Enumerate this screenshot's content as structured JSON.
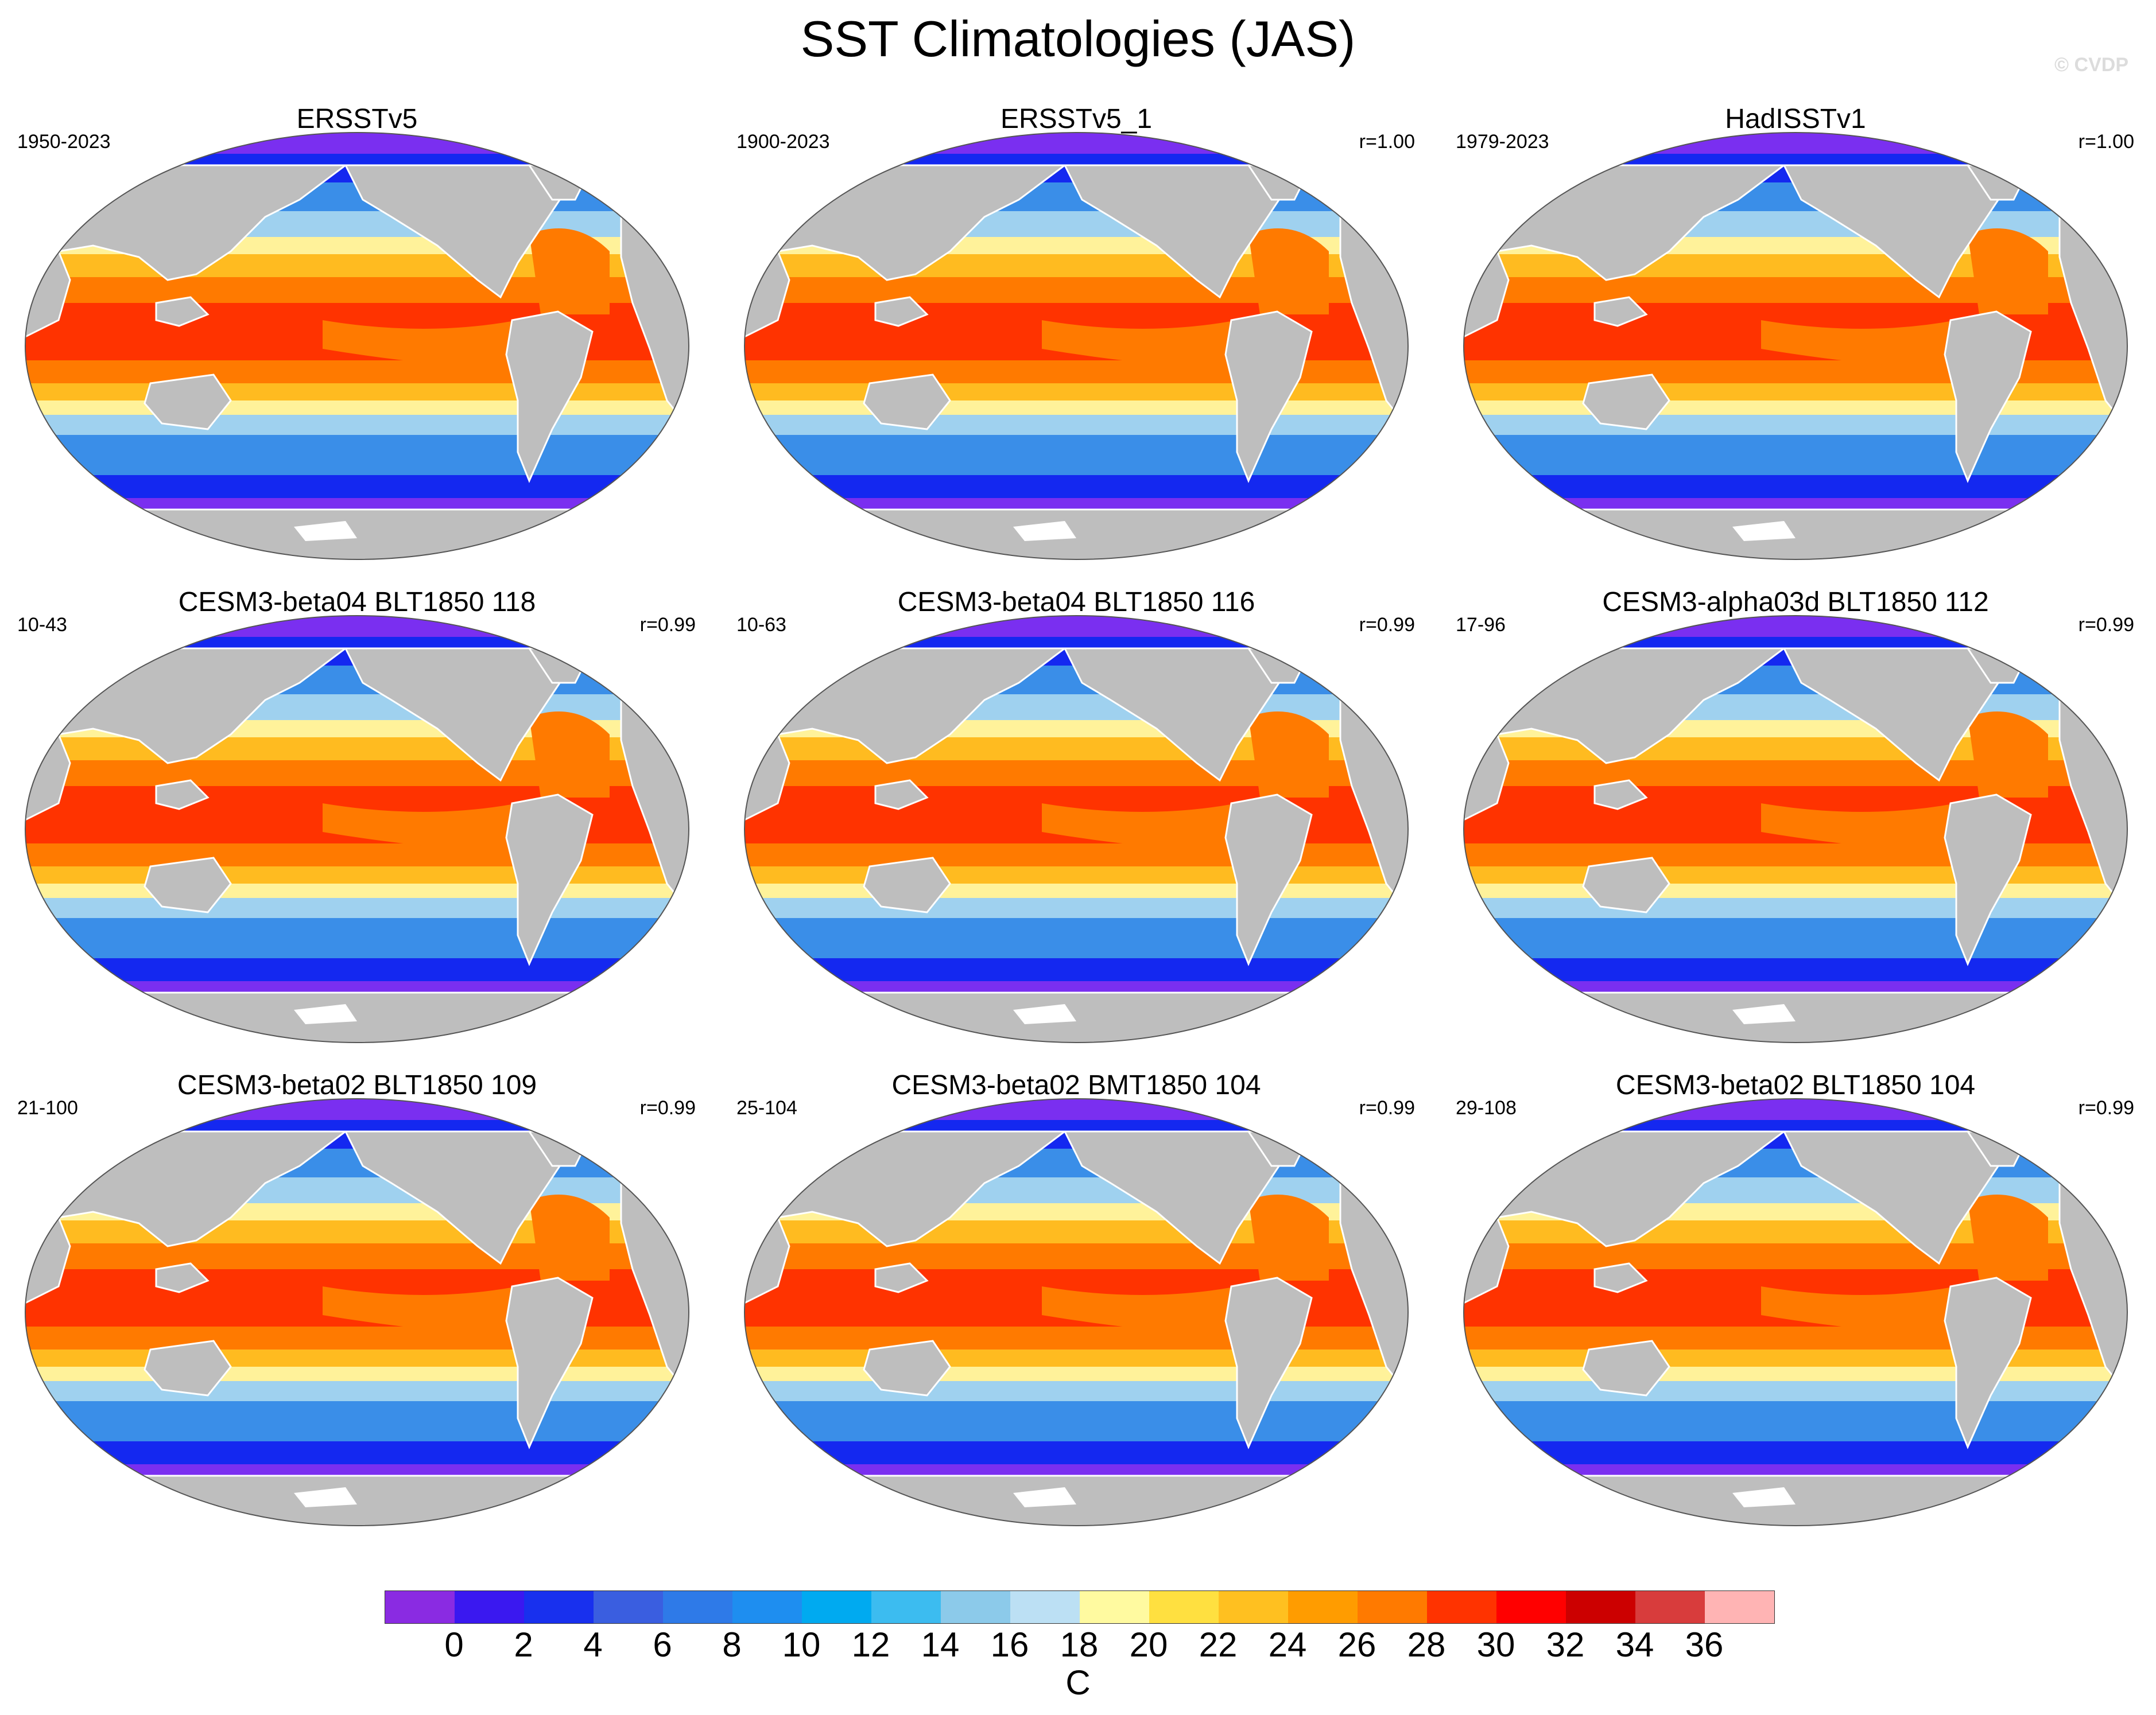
{
  "title": "SST Climatologies (JAS)",
  "watermark": "© CVDP",
  "colors": {
    "land": "#bebebe",
    "ocean_missing": "#ffffff",
    "warm_pool": "#ff3300",
    "tropics": "#ff7a00",
    "subtropics": "#ffbb20",
    "transition": "#fff29a",
    "midlat": "#9fd1ef",
    "subpolar": "#3a8ee8",
    "polar": "#1428f0",
    "ice": "#7a2ff0"
  },
  "panels": [
    {
      "title": "ERSSTv5",
      "period": "1950-2023",
      "corr": ""
    },
    {
      "title": "ERSSTv5_1",
      "period": "1900-2023",
      "corr": "r=1.00"
    },
    {
      "title": "HadISSTv1",
      "period": "1979-2023",
      "corr": "r=1.00"
    },
    {
      "title": "CESM3-beta04 BLT1850 118",
      "period": "10-43",
      "corr": "r=0.99"
    },
    {
      "title": "CESM3-beta04 BLT1850 116",
      "period": "10-63",
      "corr": "r=0.99"
    },
    {
      "title": "CESM3-alpha03d BLT1850 112",
      "period": "17-96",
      "corr": "r=0.99"
    },
    {
      "title": "CESM3-beta02 BLT1850 109",
      "period": "21-100",
      "corr": "r=0.99"
    },
    {
      "title": "CESM3-beta02 BMT1850 104",
      "period": "25-104",
      "corr": "r=0.99"
    },
    {
      "title": "CESM3-beta02 BLT1850 104",
      "period": "29-108",
      "corr": "r=0.99"
    }
  ],
  "colorbar": {
    "colors": [
      "#8a2be2",
      "#3a18f0",
      "#1830ee",
      "#3a5ee0",
      "#2e7ae8",
      "#1e8ef0",
      "#00aaf0",
      "#3cbcf0",
      "#8ccaea",
      "#bce0f4",
      "#fffaa0",
      "#ffe040",
      "#ffc020",
      "#ff9c00",
      "#ff7a00",
      "#ff3300",
      "#ff0000",
      "#cc0000",
      "#d83c3c",
      "#ffb4b4"
    ],
    "ticks": [
      "0",
      "2",
      "4",
      "6",
      "8",
      "10",
      "12",
      "14",
      "16",
      "18",
      "20",
      "22",
      "24",
      "26",
      "28",
      "30",
      "32",
      "34",
      "36"
    ],
    "units": "C"
  }
}
